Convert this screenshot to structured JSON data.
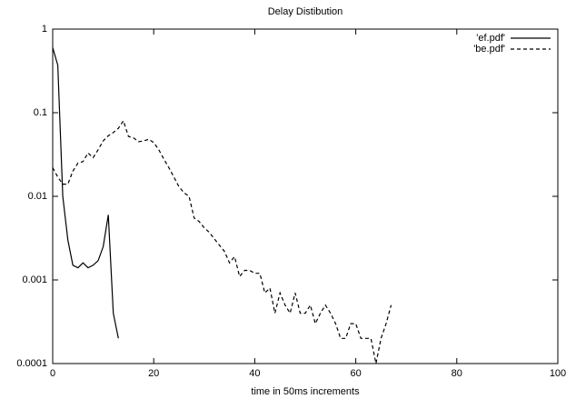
{
  "chart_data": {
    "type": "line",
    "title": "Delay Distibution",
    "x_label": "time in 50ms increments",
    "xlim": [
      0,
      100
    ],
    "xticks": [
      0,
      20,
      40,
      60,
      80,
      100
    ],
    "ylim": [
      0.0001,
      1
    ],
    "yticks": [
      0.0001,
      0.001,
      0.01,
      0.1,
      1
    ],
    "log_y": true,
    "grid": false,
    "legend": "top-right",
    "series": [
      {
        "name": "'ef.pdf'",
        "color": "#000000",
        "dash": "solid",
        "x": [
          0,
          1,
          2,
          3,
          4,
          5,
          6,
          7,
          8,
          9,
          10,
          11,
          12,
          13
        ],
        "values": [
          0.6,
          0.37,
          0.01,
          0.003,
          0.0015,
          0.0014,
          0.0016,
          0.0014,
          0.0015,
          0.0017,
          0.0025,
          0.006,
          0.0004,
          0.0002
        ]
      },
      {
        "name": "'be.pdf'",
        "color": "#000000",
        "dash": "dashed",
        "x": [
          0,
          1,
          2,
          3,
          4,
          5,
          6,
          7,
          8,
          9,
          10,
          11,
          12,
          13,
          14,
          15,
          16,
          17,
          18,
          19,
          20,
          21,
          22,
          23,
          24,
          25,
          26,
          27,
          28,
          29,
          30,
          31,
          32,
          33,
          34,
          35,
          36,
          37,
          38,
          39,
          40,
          41,
          42,
          43,
          44,
          45,
          46,
          47,
          48,
          49,
          50,
          51,
          52,
          53,
          54,
          55,
          56,
          57,
          58,
          59,
          60,
          61,
          62,
          63,
          64,
          65,
          66,
          67
        ],
        "values": [
          0.022,
          0.017,
          0.014,
          0.014,
          0.02,
          0.025,
          0.026,
          0.033,
          0.029,
          0.036,
          0.046,
          0.053,
          0.058,
          0.065,
          0.08,
          0.052,
          0.05,
          0.045,
          0.046,
          0.048,
          0.044,
          0.036,
          0.028,
          0.022,
          0.017,
          0.013,
          0.011,
          0.01,
          0.0055,
          0.005,
          0.0042,
          0.0037,
          0.0031,
          0.0026,
          0.0022,
          0.0016,
          0.0019,
          0.0011,
          0.0013,
          0.0013,
          0.0012,
          0.0012,
          0.0007,
          0.0008,
          0.0004,
          0.0007,
          0.0005,
          0.0004,
          0.0007,
          0.0004,
          0.0004,
          0.0005,
          0.0003,
          0.0004,
          0.0005,
          0.0004,
          0.0003,
          0.0002,
          0.0002,
          0.0003,
          0.0003,
          0.0002,
          0.0002,
          0.0002,
          0.0001,
          0.0002,
          0.0003,
          0.0005
        ]
      }
    ]
  }
}
